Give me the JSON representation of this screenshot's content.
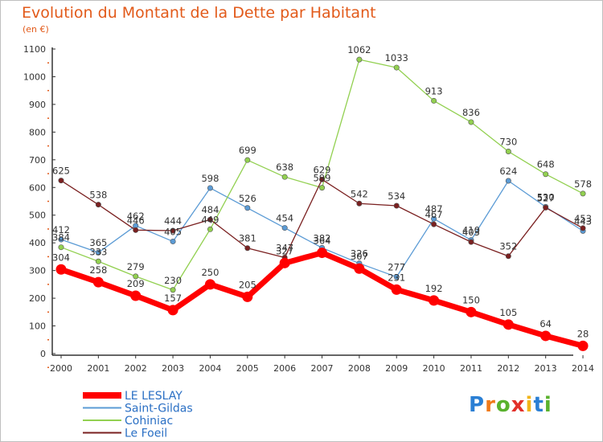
{
  "title": "Evolution du Montant de la Dette par Habitant",
  "subtitle": "(en €)",
  "logo": {
    "text": "Proxiti",
    "letter_colors": [
      "#2a7fd4",
      "#f07a1a",
      "#5ab22e",
      "#e2302a",
      "#f2b51a",
      "#2a7fd4",
      "#5ab22e"
    ]
  },
  "chart_data": {
    "type": "line",
    "x": [
      "2000",
      "2001",
      "2002",
      "2003",
      "2004",
      "2005",
      "2006",
      "2007",
      "2008",
      "2009",
      "2010",
      "2011",
      "2012",
      "2013",
      "2014"
    ],
    "ylim": [
      0,
      1100
    ],
    "yticks": [
      "0",
      "100",
      "200",
      "300",
      "400",
      "500",
      "600",
      "700",
      "800",
      "900",
      "1000",
      "1100"
    ],
    "grid": false,
    "legend_position": "bottom-left",
    "series": [
      {
        "name": "Saint-Gildas",
        "color": "#5b9bd5",
        "values": [
          412,
          365,
          462,
          405,
          598,
          526,
          454,
          382,
          326,
          277,
          487,
          410,
          624,
          530,
          443
        ],
        "labels": [
          "412",
          "365",
          "462",
          "405",
          "598",
          "526",
          "454",
          "382",
          "326",
          "277",
          "487",
          "410",
          "624",
          "530",
          "443"
        ]
      },
      {
        "name": "Cohiniac",
        "color": "#92d050",
        "values": [
          384,
          333,
          279,
          230,
          449,
          699,
          638,
          599,
          1062,
          1033,
          913,
          836,
          730,
          648,
          578
        ],
        "labels": [
          "384",
          "333",
          "279",
          "230",
          "449",
          "699",
          "638",
          "599",
          "1062",
          "1033",
          "913",
          "836",
          "730",
          "648",
          "578"
        ]
      },
      {
        "name": "Le Foeil",
        "color": "#7a2020",
        "values": [
          625,
          538,
          446,
          444,
          484,
          381,
          347,
          629,
          542,
          534,
          467,
          403,
          352,
          527,
          453
        ],
        "labels": [
          "625",
          "538",
          "446",
          "444",
          "484",
          "381",
          "347",
          "629",
          "542",
          "534",
          "467",
          "403",
          "352",
          "527",
          "453"
        ]
      },
      {
        "name": "LE LESLAY",
        "color": "#ff0000",
        "values": [
          304,
          258,
          209,
          157,
          250,
          205,
          327,
          364,
          307,
          231,
          192,
          150,
          105,
          64,
          28
        ],
        "labels": [
          "304",
          "258",
          "209",
          "157",
          "250",
          "205",
          "327",
          "364",
          "307",
          "231",
          "192",
          "150",
          "105",
          "64",
          "28"
        ]
      }
    ],
    "legend": [
      {
        "label": "LE LESLAY",
        "color": "#ff0000",
        "thick": true
      },
      {
        "label": "Saint-Gildas",
        "color": "#5b9bd5",
        "thick": false
      },
      {
        "label": "Cohiniac",
        "color": "#92d050",
        "thick": false
      },
      {
        "label": "Le Foeil",
        "color": "#7a2020",
        "thick": false
      }
    ]
  }
}
